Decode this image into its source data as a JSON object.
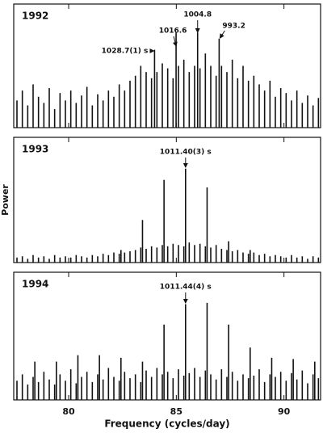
{
  "chart_data": [
    {
      "type": "bar",
      "title": "1992",
      "xlim": [
        77.45,
        91.7
      ],
      "ylim": [
        0,
        1
      ],
      "xticks": [
        80,
        85,
        90
      ],
      "color": "#111111",
      "annotations": [
        {
          "text": "1028.7(1) s",
          "x": 83.99
        },
        {
          "text": "1016.6",
          "x": 84.99
        },
        {
          "text": "1004.8",
          "x": 85.99
        },
        {
          "text": "993.2",
          "x": 86.99
        }
      ],
      "x": [
        77.6,
        77.85,
        78.1,
        78.35,
        78.6,
        78.85,
        79.1,
        79.35,
        79.6,
        79.85,
        80.1,
        80.35,
        80.6,
        80.85,
        81.1,
        81.35,
        81.6,
        81.85,
        82.1,
        82.35,
        82.6,
        82.85,
        83.1,
        83.35,
        83.6,
        83.85,
        83.99,
        84.1,
        84.35,
        84.6,
        84.85,
        84.99,
        85.1,
        85.35,
        85.6,
        85.85,
        85.99,
        86.1,
        86.35,
        86.6,
        86.85,
        86.99,
        87.1,
        87.35,
        87.6,
        87.85,
        88.1,
        88.35,
        88.6,
        88.85,
        89.1,
        89.35,
        89.6,
        89.85,
        90.1,
        90.35,
        90.6,
        90.85,
        91.1,
        91.35,
        91.6
      ],
      "values": [
        0.22,
        0.3,
        0.18,
        0.35,
        0.25,
        0.2,
        0.32,
        0.15,
        0.28,
        0.22,
        0.3,
        0.2,
        0.26,
        0.33,
        0.18,
        0.27,
        0.22,
        0.3,
        0.25,
        0.35,
        0.3,
        0.38,
        0.42,
        0.5,
        0.45,
        0.4,
        0.63,
        0.45,
        0.52,
        0.48,
        0.4,
        0.77,
        0.5,
        0.55,
        0.45,
        0.5,
        0.77,
        0.48,
        0.6,
        0.5,
        0.42,
        0.72,
        0.5,
        0.45,
        0.55,
        0.4,
        0.5,
        0.38,
        0.42,
        0.35,
        0.3,
        0.38,
        0.25,
        0.32,
        0.28,
        0.22,
        0.3,
        0.2,
        0.26,
        0.18,
        0.24
      ]
    },
    {
      "type": "bar",
      "title": "1993",
      "ylabel": "Power",
      "xlim": [
        77.45,
        91.7
      ],
      "ylim": [
        0,
        1
      ],
      "xticks": [
        80,
        85,
        90
      ],
      "color": "#111111",
      "annotations": [
        {
          "text": "1011.40(3) s",
          "x": 85.43
        }
      ],
      "x": [
        77.6,
        77.85,
        78.1,
        78.35,
        78.6,
        78.85,
        79.1,
        79.35,
        79.6,
        79.85,
        80.1,
        80.35,
        80.6,
        80.85,
        81.1,
        81.35,
        81.6,
        81.85,
        82.1,
        82.35,
        82.43,
        82.6,
        82.85,
        83.1,
        83.35,
        83.43,
        83.6,
        83.85,
        84.1,
        84.35,
        84.43,
        84.6,
        84.85,
        85.1,
        85.35,
        85.43,
        85.6,
        85.85,
        86.1,
        86.35,
        86.43,
        86.6,
        86.85,
        87.1,
        87.35,
        87.43,
        87.6,
        87.85,
        88.1,
        88.35,
        88.43,
        88.6,
        88.85,
        89.1,
        89.35,
        89.6,
        89.85,
        90.1,
        90.35,
        90.6,
        90.85,
        91.1,
        91.35,
        91.6
      ],
      "values": [
        0.04,
        0.05,
        0.03,
        0.06,
        0.04,
        0.05,
        0.03,
        0.06,
        0.04,
        0.05,
        0.04,
        0.06,
        0.05,
        0.04,
        0.06,
        0.05,
        0.07,
        0.06,
        0.08,
        0.07,
        0.1,
        0.08,
        0.09,
        0.1,
        0.12,
        0.34,
        0.11,
        0.13,
        0.12,
        0.14,
        0.66,
        0.13,
        0.15,
        0.14,
        0.13,
        0.75,
        0.16,
        0.14,
        0.15,
        0.13,
        0.6,
        0.12,
        0.14,
        0.11,
        0.1,
        0.17,
        0.09,
        0.1,
        0.08,
        0.07,
        0.1,
        0.08,
        0.06,
        0.07,
        0.05,
        0.06,
        0.05,
        0.04,
        0.06,
        0.04,
        0.05,
        0.03,
        0.05,
        0.04
      ]
    },
    {
      "type": "bar",
      "title": "1994",
      "xlabel": "Frequency (cycles/day)",
      "xlim": [
        77.45,
        91.7
      ],
      "ylim": [
        0,
        1
      ],
      "xticks": [
        80,
        85,
        90
      ],
      "color": "#111111",
      "annotations": [
        {
          "text": "1011.44(4) s",
          "x": 85.43
        }
      ],
      "x": [
        77.6,
        77.85,
        78.1,
        78.35,
        78.43,
        78.6,
        78.85,
        79.1,
        79.35,
        79.43,
        79.6,
        79.85,
        80.1,
        80.35,
        80.43,
        80.6,
        80.85,
        81.1,
        81.35,
        81.43,
        81.6,
        81.85,
        82.1,
        82.35,
        82.43,
        82.6,
        82.85,
        83.1,
        83.35,
        83.43,
        83.6,
        83.85,
        84.1,
        84.35,
        84.43,
        84.6,
        84.85,
        85.1,
        85.35,
        85.43,
        85.6,
        85.85,
        86.1,
        86.35,
        86.43,
        86.6,
        86.85,
        87.1,
        87.35,
        87.43,
        87.6,
        87.85,
        88.1,
        88.35,
        88.43,
        88.6,
        88.85,
        89.1,
        89.35,
        89.43,
        89.6,
        89.85,
        90.1,
        90.35,
        90.43,
        90.6,
        90.85,
        91.1,
        91.35,
        91.43,
        91.6
      ],
      "values": [
        0.15,
        0.2,
        0.12,
        0.18,
        0.3,
        0.14,
        0.22,
        0.16,
        0.12,
        0.3,
        0.2,
        0.15,
        0.24,
        0.13,
        0.35,
        0.18,
        0.22,
        0.14,
        0.2,
        0.35,
        0.16,
        0.25,
        0.18,
        0.15,
        0.33,
        0.22,
        0.17,
        0.2,
        0.14,
        0.3,
        0.23,
        0.18,
        0.25,
        0.2,
        0.59,
        0.22,
        0.17,
        0.24,
        0.19,
        0.75,
        0.21,
        0.25,
        0.18,
        0.23,
        0.76,
        0.2,
        0.16,
        0.24,
        0.18,
        0.59,
        0.22,
        0.15,
        0.2,
        0.17,
        0.41,
        0.19,
        0.24,
        0.14,
        0.2,
        0.33,
        0.18,
        0.22,
        0.15,
        0.21,
        0.32,
        0.16,
        0.23,
        0.13,
        0.2,
        0.3,
        0.17
      ]
    }
  ]
}
